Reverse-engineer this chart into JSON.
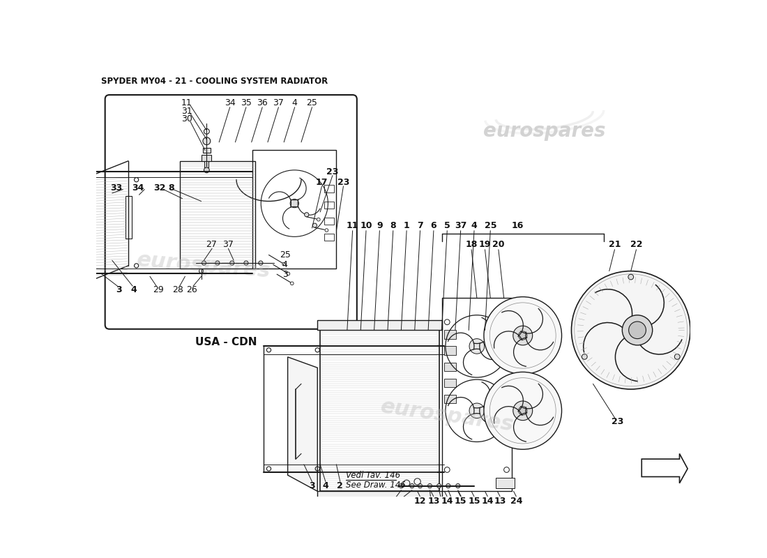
{
  "title": "SPYDER MY04 - 21 - COOLING SYSTEM RADIATOR",
  "background_color": "#ffffff",
  "watermark": "eurospares",
  "usa_cdn_label": "USA - CDN",
  "vedi_line1": "Vedi Tav. 146",
  "vedi_line2": "See Draw. 146",
  "line_color": "#1a1a1a",
  "text_color": "#111111",
  "light_line": "#888888",
  "gray_fill": "#e8e8e8",
  "wm_color": "#cccccc"
}
